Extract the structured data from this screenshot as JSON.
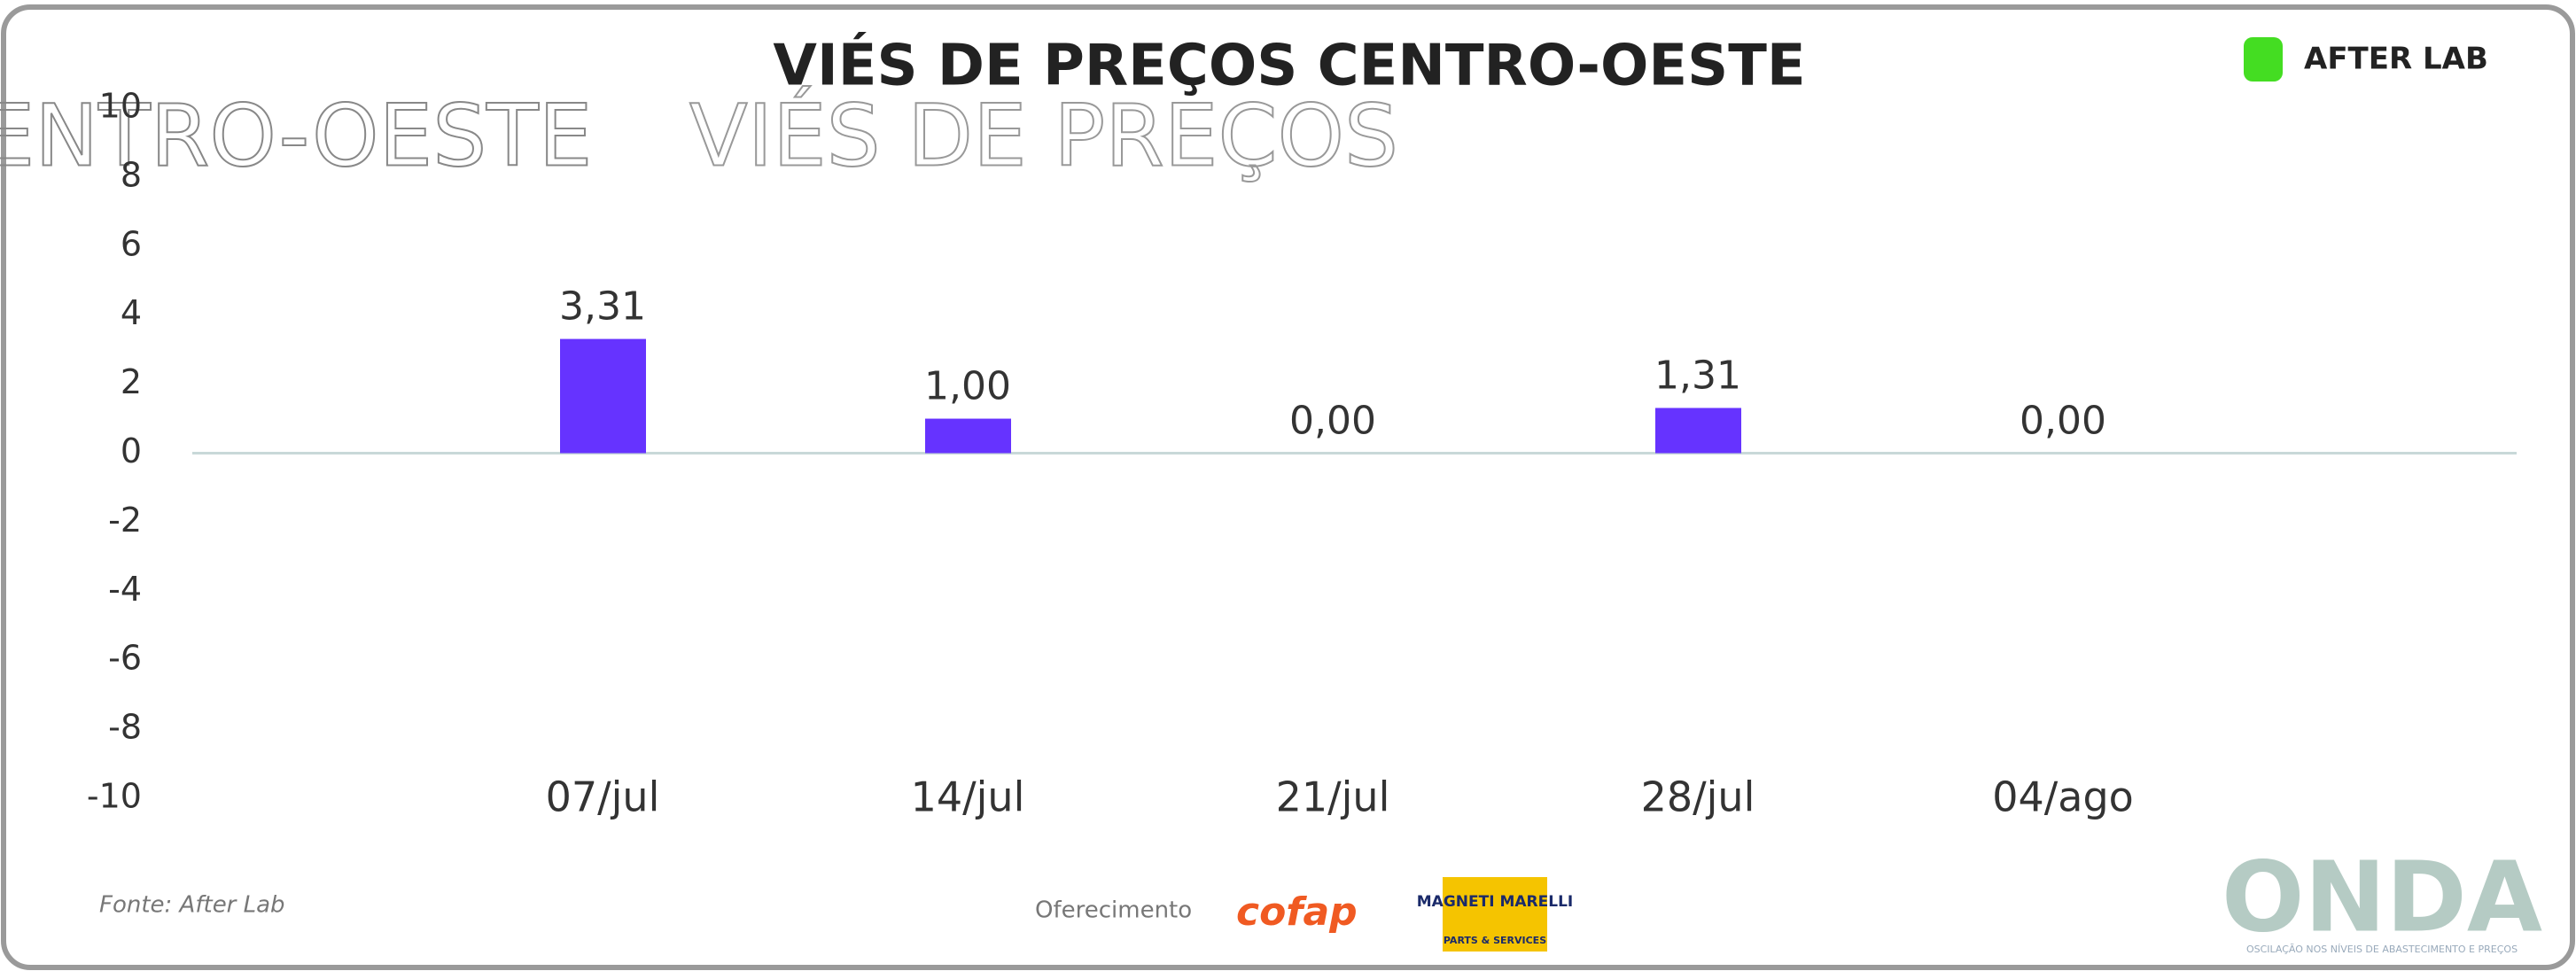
{
  "chart_data": {
    "type": "bar",
    "title": "VIÉS DE PREÇOS CENTRO-OESTE",
    "ghost_texts": [
      "CENTRO-OESTE",
      "VIÉS DE PREÇOS"
    ],
    "categories": [
      "07/jul",
      "14/jul",
      "21/jul",
      "28/jul",
      "04/ago"
    ],
    "values": [
      3.31,
      1.0,
      0.0,
      1.31,
      0.0
    ],
    "value_labels": [
      "3,31",
      "1,00",
      "0,00",
      "1,31",
      "0,00"
    ],
    "color": "#6633ff",
    "ylim": [
      -10,
      10
    ],
    "yticks": [
      -10,
      -8,
      -6,
      -4,
      -2,
      0,
      2,
      4,
      6,
      8,
      10
    ],
    "grid": false,
    "source": "Fonte: After Lab",
    "sponsor_label": "Oferecimento",
    "sponsors": [
      "cofap",
      "MAGNETI MARELLI",
      "PARTS & SERVICES"
    ],
    "brand": "AFTER LAB",
    "logo": "ONDA",
    "logo_tagline": "OSCILAÇÃO NOS NÍVEIS DE ABASTECIMENTO E PREÇOS"
  }
}
